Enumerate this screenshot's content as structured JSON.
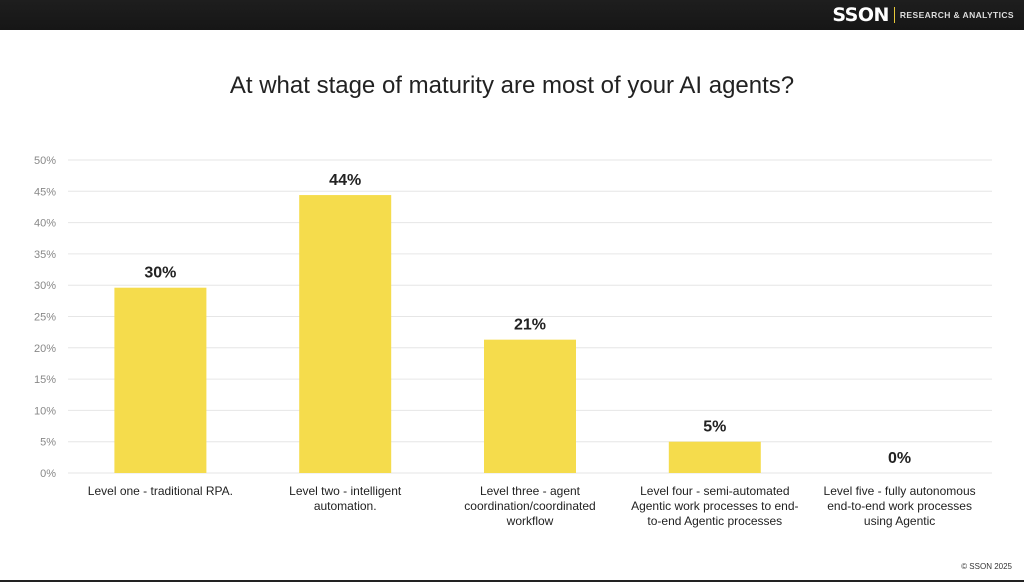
{
  "header": {
    "logo_text": "SSON",
    "logo_tagline": "RESEARCH & ANALYTICS"
  },
  "footer": {
    "copyright": "© SSON 2025"
  },
  "colors": {
    "bar": "#f5dc4c",
    "grid": "#e6e6e6",
    "header_bg": "#1a1a1a"
  },
  "chart_data": {
    "type": "bar",
    "title": "At what stage of maturity are most of your AI agents?",
    "xlabel": "",
    "ylabel": "",
    "ylim": [
      0,
      50
    ],
    "yticks": [
      "0%",
      "5%",
      "10%",
      "15%",
      "20%",
      "25%",
      "30%",
      "35%",
      "40%",
      "45%",
      "50%"
    ],
    "grid": true,
    "categories": [
      [
        "Level one - traditional RPA."
      ],
      [
        "Level two - intelligent",
        "automation."
      ],
      [
        "Level three - agent",
        "coordination/coordinated",
        "workflow"
      ],
      [
        "Level four - semi-automated",
        "Agentic work processes to end-",
        "to-end Agentic processes"
      ],
      [
        "Level five - fully autonomous",
        "end-to-end work processes",
        "using Agentic"
      ]
    ],
    "values": [
      29.6,
      44.4,
      21.3,
      5.0,
      0
    ],
    "data_labels": [
      "30%",
      "44%",
      "21%",
      "5%",
      "0%"
    ]
  }
}
